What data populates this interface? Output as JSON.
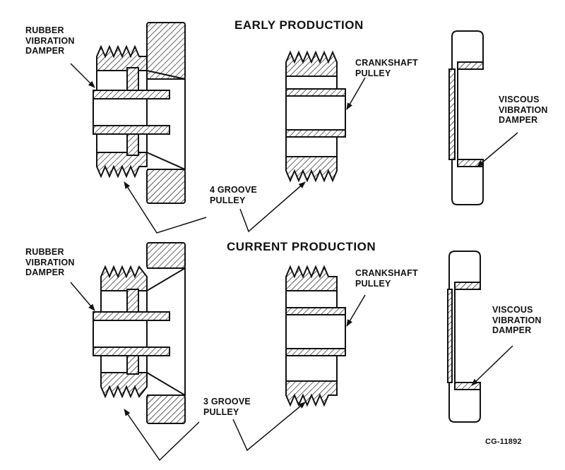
{
  "sections": {
    "early": {
      "heading": "EARLY PRODUCTION",
      "rubber_damper_label": "RUBBER\nVIBRATION\nDAMPER",
      "crankshaft_pulley_label": "CRANKSHAFT\nPULLEY",
      "viscous_damper_label": "VISCOUS\nVIBRATION\nDAMPER",
      "pulley_label": "4 GROOVE\nPULLEY"
    },
    "current": {
      "heading": "CURRENT PRODUCTION",
      "rubber_damper_label": "RUBBER\nVIBRATION\nDAMPER",
      "crankshaft_pulley_label": "CRANKSHAFT\nPULLEY",
      "viscous_damper_label": "VISCOUS\nVIBRATION\nDAMPER",
      "pulley_label": "3 GROOVE\nPULLEY"
    }
  },
  "figure_number": "CG-11892",
  "colors": {
    "ink": "#111111",
    "background": "#ffffff"
  }
}
